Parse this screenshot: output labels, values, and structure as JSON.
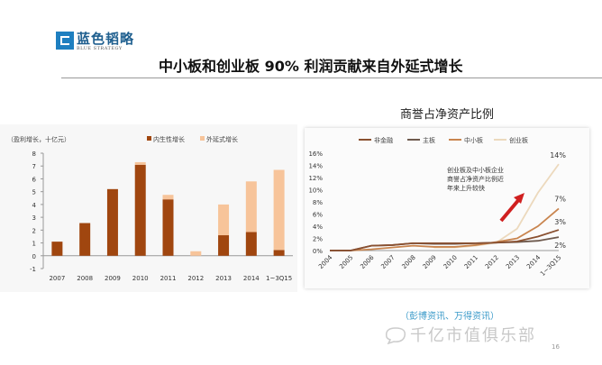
{
  "header": {
    "logo_cn": "蓝色韬略",
    "logo_en": "BLUE STRATEGY",
    "title": "中小板和创业板 90% 利润贡献来自外延式增长"
  },
  "chart_data": [
    {
      "type": "bar",
      "stacked": true,
      "ylabel": "（盈利增长，十亿元）",
      "categories": [
        "2007",
        "2008",
        "2009",
        "2010",
        "2011",
        "2012",
        "2013",
        "2014",
        "1~3Q15"
      ],
      "ylim": [
        -1,
        8
      ],
      "yticks": [
        -1,
        0,
        1,
        2,
        3,
        4,
        5,
        6,
        7,
        8
      ],
      "legend_position": "top",
      "series": [
        {
          "name": "内生性增长",
          "color": "#a0460f",
          "values": [
            1.1,
            2.55,
            5.2,
            7.1,
            4.4,
            0,
            1.6,
            1.85,
            0.45
          ]
        },
        {
          "name": "外延式增长",
          "color": "#f7c49a",
          "values": [
            0,
            0,
            0,
            0.2,
            0.35,
            0.35,
            2.4,
            3.95,
            6.25
          ]
        }
      ]
    },
    {
      "type": "line",
      "title": "商誉占净资产比例",
      "categories": [
        "2004",
        "2005",
        "2006",
        "2007",
        "2008",
        "2009",
        "2010",
        "2011",
        "2012",
        "2013",
        "2014",
        "1~3Q15"
      ],
      "ylim": [
        0,
        16
      ],
      "yticks": [
        "0%",
        "2%",
        "4%",
        "6%",
        "8%",
        "10%",
        "12%",
        "14%",
        "16%"
      ],
      "legend_position": "top",
      "series": [
        {
          "name": "非金融",
          "color": "#8a5030",
          "values": [
            0,
            0,
            0.8,
            0.9,
            1.2,
            1.2,
            1.2,
            1.2,
            1.3,
            1.5,
            2.3,
            3.4
          ]
        },
        {
          "name": "主板",
          "color": "#6e5a4e",
          "values": [
            0,
            0,
            0.8,
            0.9,
            1.2,
            1.1,
            1.1,
            1.2,
            1.3,
            1.4,
            1.6,
            2.2
          ]
        },
        {
          "name": "中小板",
          "color": "#c9854f",
          "values": [
            0,
            0,
            0.2,
            0.5,
            0.8,
            0.6,
            0.6,
            0.9,
            1.4,
            2.0,
            4.0,
            6.9
          ]
        },
        {
          "name": "创业板",
          "color": "#ecd9bd",
          "values": [
            null,
            null,
            null,
            null,
            null,
            0.5,
            0.5,
            0.8,
            1.3,
            3.6,
            9.5,
            14.2
          ]
        }
      ],
      "end_labels": [
        "3%",
        "2%",
        "7%",
        "14%"
      ],
      "annotation": [
        "创业板及中小板企业",
        "商誉占净资产比例近",
        "年来上升较快"
      ]
    }
  ],
  "footer": {
    "source": "（彭博资讯、万得资讯）",
    "watermark": "千亿市值俱乐部",
    "page": "16"
  }
}
